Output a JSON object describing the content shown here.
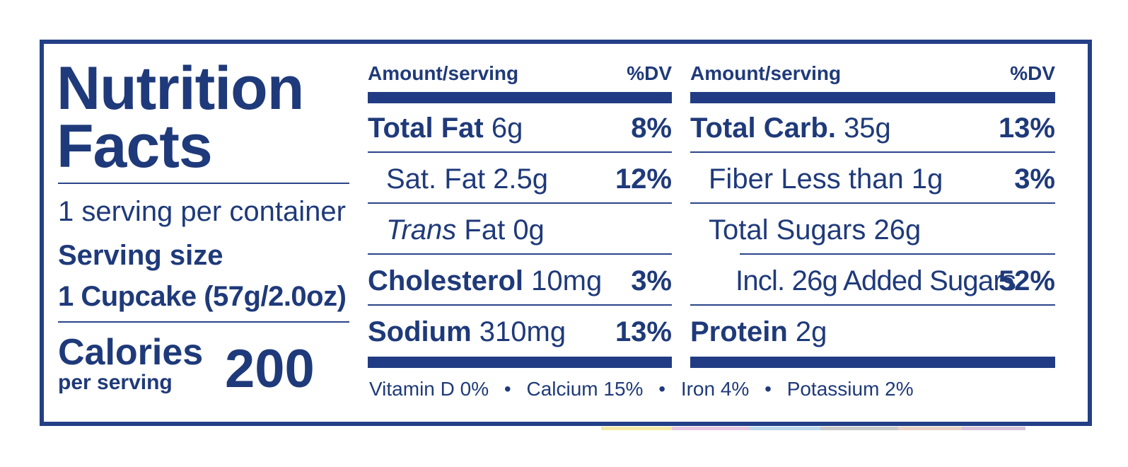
{
  "title_line1": "Nutrition",
  "title_line2": "Facts",
  "servings_per_container": "1 serving per container",
  "serving_size_label": "Serving size",
  "serving_size_value": "1 Cupcake (57g/2.0oz)",
  "calories_label": "Calories",
  "calories_sub": "per serving",
  "calories_value": "200",
  "col_header_amount": "Amount/serving",
  "col_header_dv": "%DV",
  "left_column": [
    {
      "name": "Total Fat",
      "amount": "6g",
      "dv": "8%"
    },
    {
      "name": "Sat. Fat",
      "amount": "2.5g",
      "dv": "12%"
    },
    {
      "name": "Trans",
      "amount": "Fat 0g",
      "dv": ""
    },
    {
      "name": "Cholesterol",
      "amount": "10mg",
      "dv": "3%"
    },
    {
      "name": "Sodium",
      "amount": "310mg",
      "dv": "13%"
    }
  ],
  "right_column": [
    {
      "name": "Total Carb.",
      "amount": "35g",
      "dv": "13%"
    },
    {
      "name": "Fiber Less than",
      "amount": "1g",
      "dv": "3%"
    },
    {
      "name": "Total Sugars",
      "amount": "26g",
      "dv": ""
    },
    {
      "name": "Incl. 26g Added Sugars",
      "amount": "",
      "dv": "52%"
    },
    {
      "name": "Protein",
      "amount": "2g",
      "dv": ""
    }
  ],
  "vitamins": [
    "Vitamin D 0%",
    "Calcium 15%",
    "Iron 4%",
    "Potassium 2%"
  ],
  "vitamin_separator": "•",
  "colors": {
    "label_blue": "#1f3a7a",
    "border": "#233f86",
    "background": "#ffffff"
  }
}
